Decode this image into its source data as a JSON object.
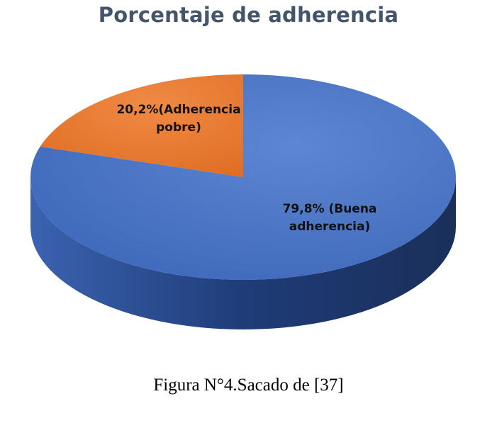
{
  "chart_data": {
    "type": "pie",
    "title": "Porcentaje de adherencia",
    "slices": [
      {
        "value": 79.8,
        "color": "#4472c4",
        "label_lines": [
          "79,8% (Buena",
          "adherencia)"
        ]
      },
      {
        "value": 20.2,
        "color": "#ed7d31",
        "label_lines": [
          "20,2%(Adherencia",
          "pobre)"
        ]
      }
    ]
  },
  "caption": "Figura N°4.Sacado de [37]"
}
